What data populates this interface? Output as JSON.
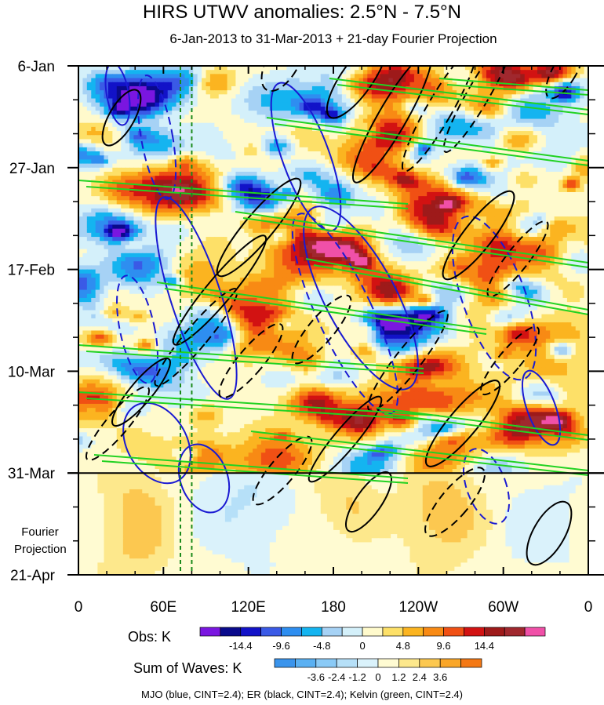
{
  "chart_data": {
    "type": "heatmap",
    "title": "HIRS UTWV anomalies: 2.5°N - 7.5°N",
    "subtitle": "6-Jan-2013 to 31-Mar-2013 + 21-day Fourier Projection",
    "x_axis": {
      "ticks": [
        "0",
        "60E",
        "120E",
        "180",
        "120W",
        "60W",
        "0"
      ],
      "range_deg_east": [
        0,
        360
      ]
    },
    "y_axis": {
      "ticks": [
        "6-Jan",
        "27-Jan",
        "17-Feb",
        "10-Mar",
        "31-Mar",
        "21-Apr"
      ],
      "range": [
        "2013-01-06",
        "2013-04-21"
      ],
      "observation_end": "2013-03-31"
    },
    "fourier_label": [
      "Fourier",
      "Projection"
    ],
    "reference_lines_deg_east": [
      72,
      80
    ],
    "colorbars": [
      {
        "label": "Obs: K",
        "tick_labels": [
          "-14.4",
          "-9.6",
          "-4.8",
          "0",
          "4.8",
          "9.6",
          "14.4"
        ],
        "colors": [
          "#7a16e0",
          "#0a0a8c",
          "#1212c8",
          "#3a5ae6",
          "#2e8ef0",
          "#14b4f0",
          "#a6d2f5",
          "#d4f0fa",
          "#fffacc",
          "#fde068",
          "#fbb420",
          "#f88a14",
          "#f05014",
          "#d21212",
          "#9e1a1a",
          "#a0282e",
          "#f050a8"
        ]
      },
      {
        "label": "Sum of Waves: K",
        "tick_labels": [
          "-3.6",
          "-2.4",
          "-1.2",
          "0",
          "1.2",
          "2.4",
          "3.6"
        ],
        "colors": [
          "#3a94ec",
          "#5ab0f2",
          "#8acaf6",
          "#b6e0f8",
          "#daf2fb",
          "#fffbd2",
          "#fde88c",
          "#fcc850",
          "#faa628",
          "#f47814"
        ]
      }
    ],
    "contour_legend": "MJO (blue, CINT=2.4); ER (black, CINT=2.4); Kelvin (green, CINT=2.4)",
    "series": [
      {
        "name": "MJO",
        "color": "#1a1ad2",
        "cint": 2.4
      },
      {
        "name": "ER",
        "color": "#000000",
        "cint": 2.4
      },
      {
        "name": "Kelvin",
        "color": "#22d222",
        "cint": 2.4
      }
    ]
  }
}
